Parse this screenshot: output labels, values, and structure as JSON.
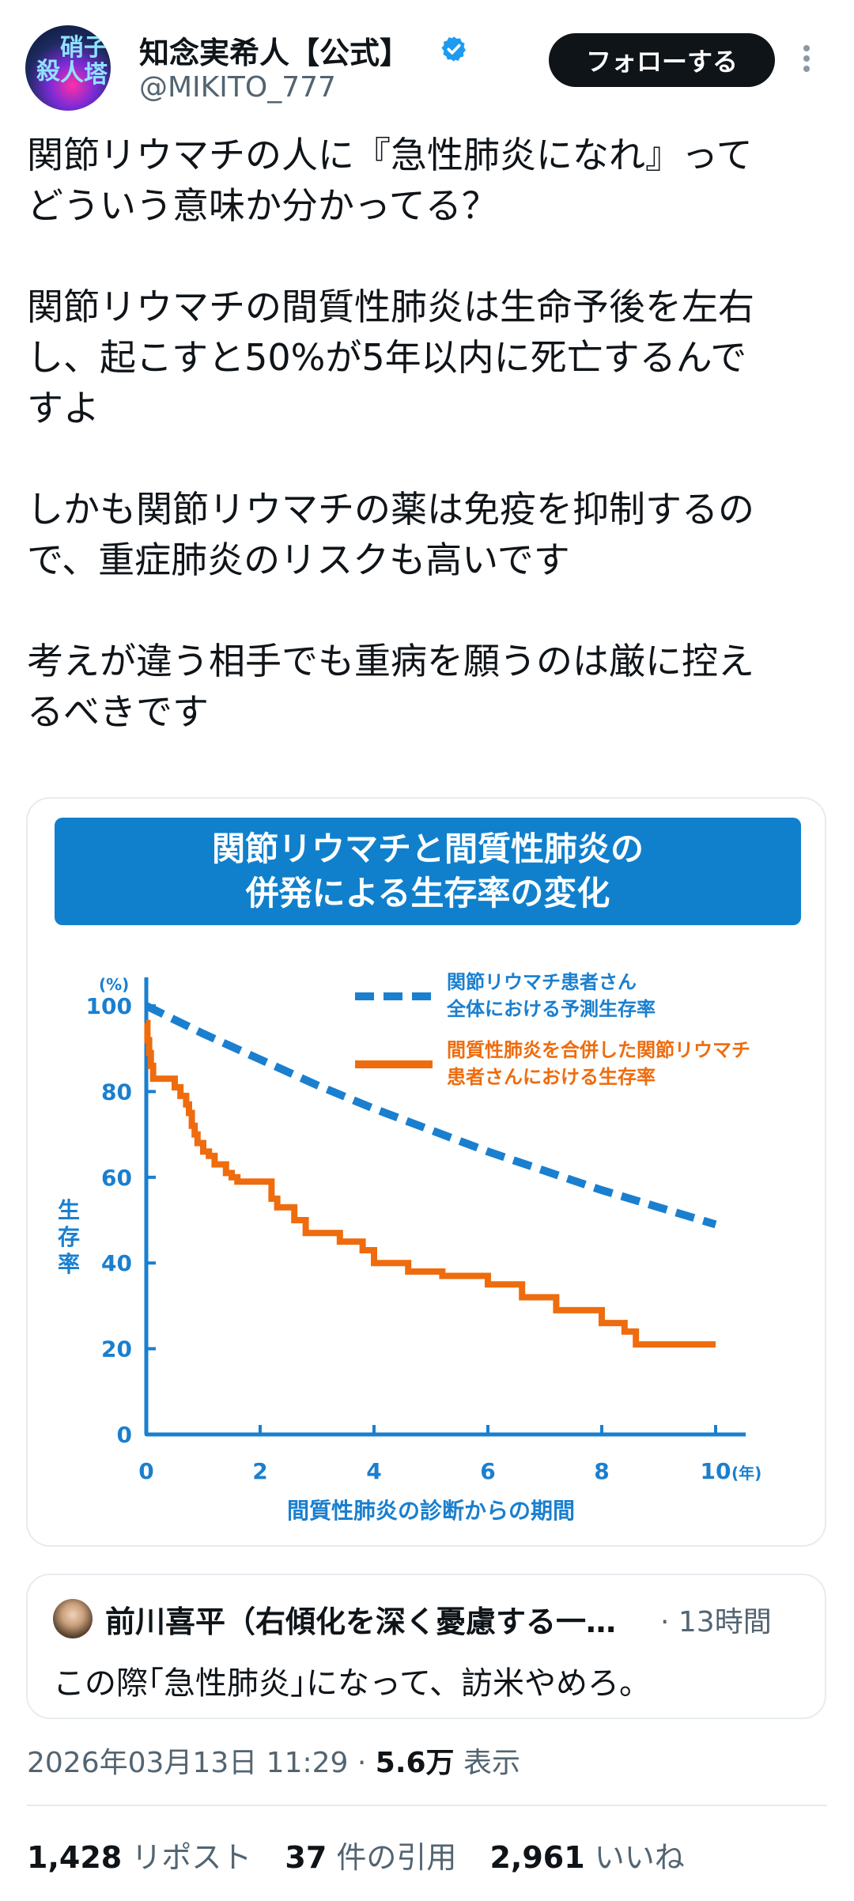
{
  "header": {
    "name": "知念実希人【公式】",
    "handle": "@MIKITO_777",
    "follow_label": "フォローする",
    "avatar_text": [
      "殺",
      "人",
      "硝",
      "子",
      "塔"
    ]
  },
  "tweet": {
    "paragraphs": [
      [
        "関節リウマチの人に『急性肺炎になれ』って",
        "どういう意味か分かってる？"
      ],
      [
        "関節リウマチの間質性肺炎は生命予後を左右",
        "し、起こすと50%が5年以内に死亡するんで",
        "すよ"
      ],
      [
        "しかも関節リウマチの薬は免疫を抑制するの",
        "で、重症肺炎のリスクも高いです"
      ],
      [
        "考えが違う相手でも重病を願うのは厳に控え",
        "るべきです"
      ]
    ]
  },
  "chart_data": {
    "type": "line",
    "title": "関節リウマチと間質性肺炎の併発による生存率の変化",
    "title_lines": [
      "関節リウマチと間質性肺炎の",
      "併発による生存率の変化"
    ],
    "xlabel": "間質性肺炎の診断からの期間",
    "x_unit": "(年)",
    "ylabel": "生存率",
    "y_unit": "(%)",
    "xlim": [
      0,
      10
    ],
    "ylim": [
      0,
      100
    ],
    "x_ticks": [
      0,
      2,
      4,
      6,
      8,
      10
    ],
    "y_ticks": [
      0,
      20,
      40,
      60,
      80,
      100
    ],
    "legend_position": "top-right",
    "series": [
      {
        "name": "関節リウマチ患者さん全体における予測生存率",
        "legend_lines": [
          "関節リウマチ患者さん",
          "全体における予測生存率"
        ],
        "color": "#1a7fcf",
        "style": "dashed",
        "x": [
          0,
          1,
          2,
          3,
          4,
          5,
          6,
          7,
          8,
          9,
          10
        ],
        "y": [
          100,
          93.5,
          87.5,
          81.5,
          76,
          71,
          66,
          61.5,
          57,
          53,
          49
        ]
      },
      {
        "name": "間質性肺炎を合併した関節リウマチ患者さんにおける生存率",
        "legend_lines": [
          "間質性肺炎を合併した関節リウマチ",
          "患者さんにおける生存率"
        ],
        "color": "#ee6c0e",
        "style": "step",
        "x": [
          0,
          0.02,
          0.05,
          0.08,
          0.12,
          0.5,
          0.6,
          0.7,
          0.75,
          0.8,
          0.85,
          0.9,
          1.0,
          1.1,
          1.2,
          1.4,
          1.5,
          1.6,
          2.2,
          2.3,
          2.6,
          2.8,
          3.4,
          3.8,
          4.0,
          4.6,
          5.2,
          6.0,
          6.6,
          7.2,
          8.0,
          8.4,
          8.6,
          10.0
        ],
        "y": [
          96,
          92,
          89,
          86,
          83,
          81,
          79,
          77,
          75,
          72,
          70,
          68,
          66,
          65,
          63,
          61,
          60,
          59,
          55,
          53,
          50,
          47,
          45,
          43,
          40,
          38,
          37,
          35,
          32,
          29,
          26,
          24,
          21,
          21
        ]
      }
    ]
  },
  "quote": {
    "author": "前川喜平（右傾化を深く憂慮する一…",
    "time": "· 13時間",
    "text": "この際｢急性肺炎｣になって、訪米やめろ。"
  },
  "meta": {
    "datetime": "2026年03月13日 11:29 · ",
    "views_count": "5.6万",
    "views_label": " 表示"
  },
  "stats": {
    "reposts": {
      "count": "1,428",
      "label": " リポスト"
    },
    "quotes": {
      "count": "37",
      "label": " 件の引用"
    },
    "likes": {
      "count": "2,961",
      "label": " いいね"
    }
  },
  "colors": {
    "accent_blue": "#1d9bf0",
    "chart_blue": "#1a7fcf",
    "chart_orange": "#ee6c0e",
    "banner_blue": "#1080cc"
  }
}
